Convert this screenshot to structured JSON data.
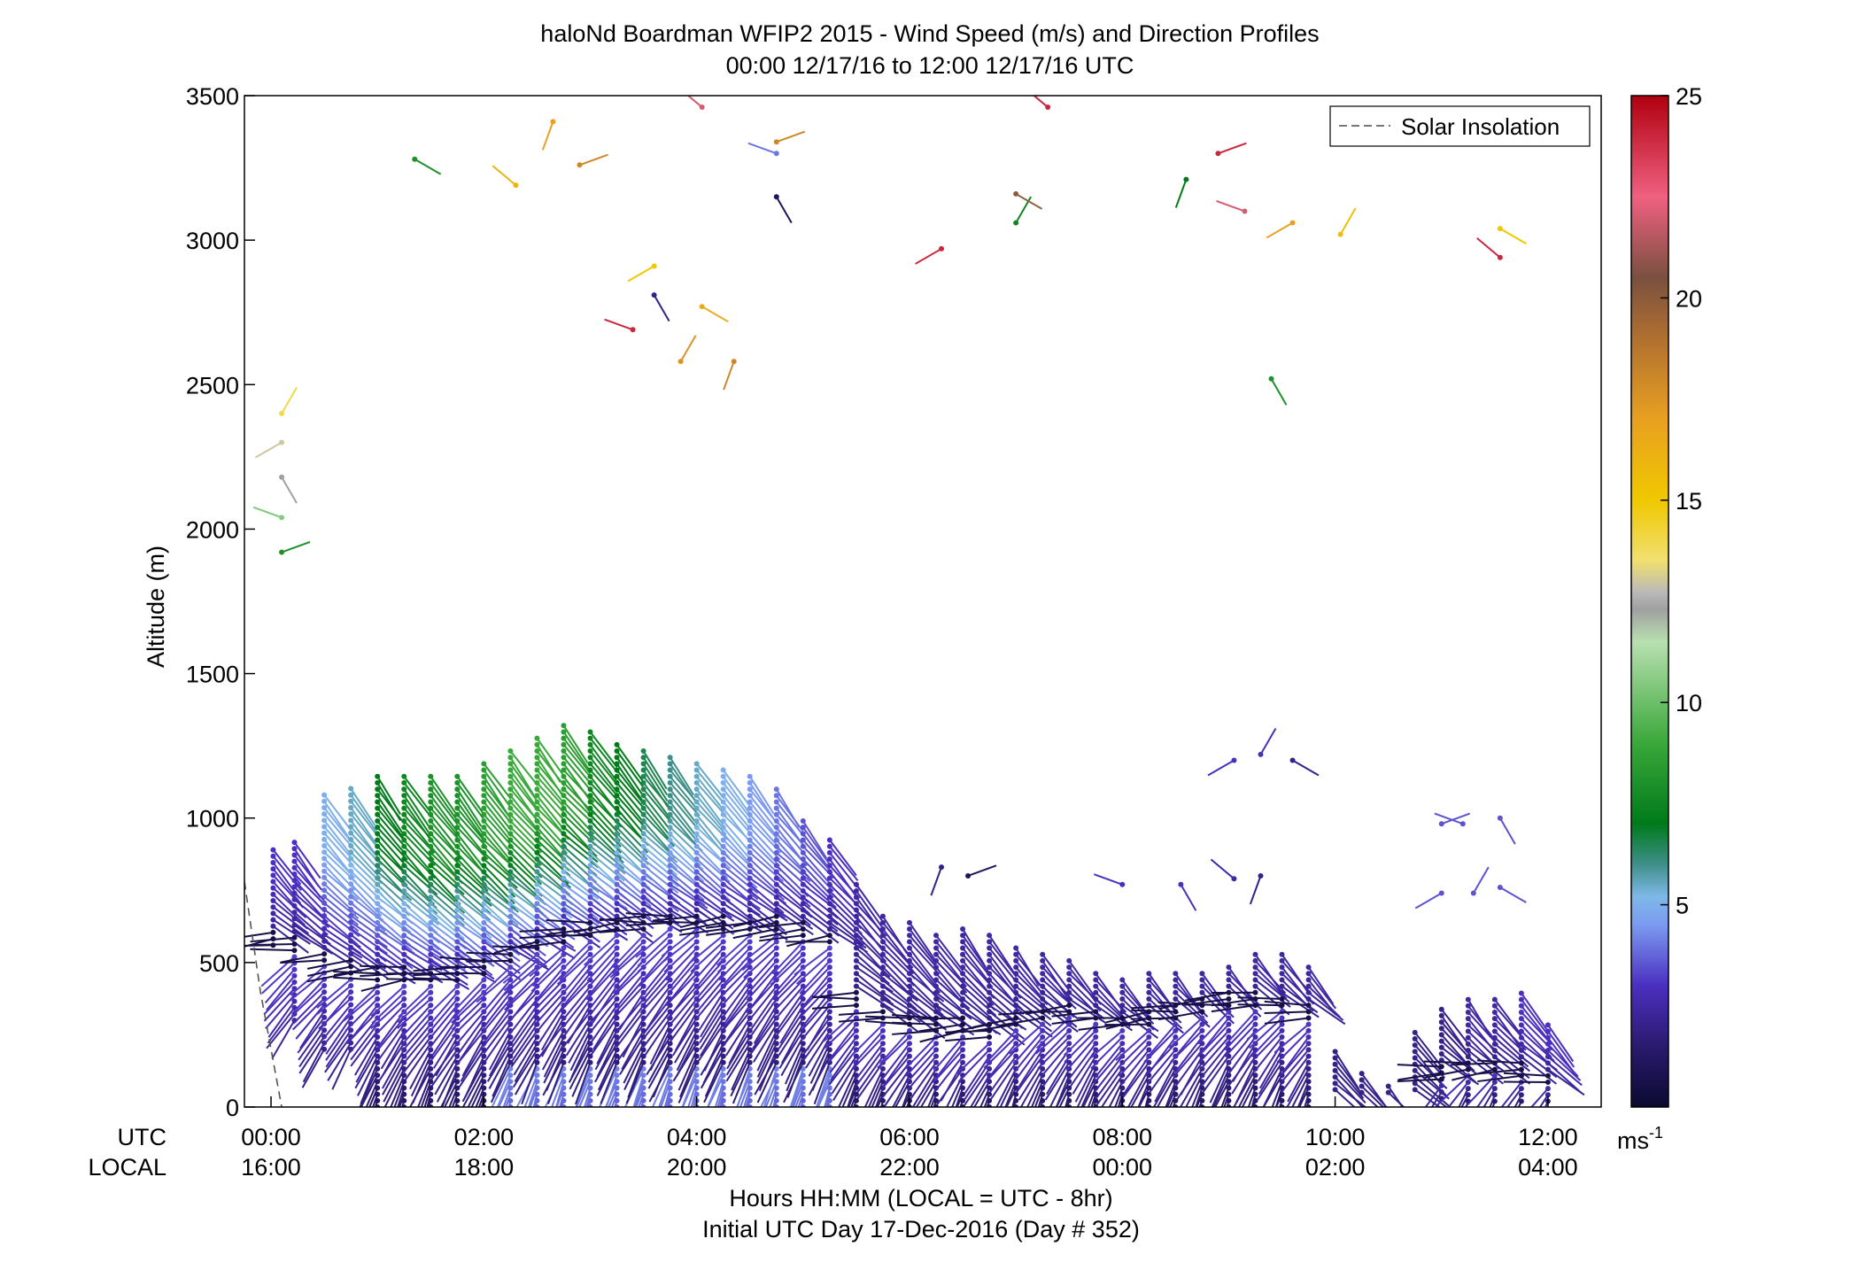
{
  "chart_data": {
    "type": "scatter",
    "title": "haloNd Boardman WFIP2 2015 - Wind Speed (m/s) and Direction Profiles",
    "subtitle": "00:00 12/17/16 to 12:00 12/17/16  UTC",
    "ylabel": "Altitude (m)",
    "xlabel": "Hours HH:MM  (LOCAL = UTC - 8hr)",
    "xlabel2": "Initial UTC Day 17-Dec-2016 (Day # 352)",
    "utc_row_label": "UTC",
    "local_row_label": "LOCAL",
    "xlim": [
      -0.25,
      12.5
    ],
    "ylim": [
      0,
      3500
    ],
    "yticks": [
      0,
      500,
      1000,
      1500,
      2000,
      2500,
      3000,
      3500
    ],
    "xticks": [
      0,
      2,
      4,
      6,
      8,
      10,
      12
    ],
    "utc_tick_labels": [
      "00:00",
      "02:00",
      "04:00",
      "06:00",
      "08:00",
      "10:00",
      "12:00"
    ],
    "local_tick_labels": [
      "16:00",
      "18:00",
      "20:00",
      "22:00",
      "00:00",
      "02:00",
      "04:00"
    ],
    "legend": {
      "label": "Solar Insolation",
      "position": "top-right"
    },
    "colorbar": {
      "label": "ms",
      "label_sup": "-1",
      "range": [
        0,
        25
      ],
      "ticks": [
        5,
        10,
        15,
        20,
        25
      ],
      "stops": [
        [
          0,
          "#0a0a30"
        ],
        [
          1.5,
          "#2a1a6e"
        ],
        [
          3,
          "#4b2fc0"
        ],
        [
          4.5,
          "#7b9af0"
        ],
        [
          5.2,
          "#7fb8e8"
        ],
        [
          6,
          "#3f8f8a"
        ],
        [
          7,
          "#007a1a"
        ],
        [
          9,
          "#3aa83a"
        ],
        [
          11.5,
          "#b8e0b0"
        ],
        [
          12.3,
          "#a0a0a0"
        ],
        [
          12.7,
          "#b8b8b8"
        ],
        [
          13.5,
          "#f0e070"
        ],
        [
          15,
          "#f0c800"
        ],
        [
          17,
          "#e8a020"
        ],
        [
          19,
          "#b07030"
        ],
        [
          20.5,
          "#7a5040"
        ],
        [
          22.5,
          "#f06080"
        ],
        [
          25,
          "#b00010"
        ]
      ]
    },
    "series": [
      {
        "x": [
          0.02,
          0.22,
          0.5,
          0.75,
          1.0,
          1.25,
          1.5,
          1.75,
          2.0,
          2.25,
          2.5,
          2.75,
          3.0,
          3.25,
          3.5,
          3.75,
          4.0,
          4.25,
          4.5,
          4.75,
          5.0,
          5.25,
          5.5,
          5.75,
          6.0,
          6.25,
          6.5,
          6.75,
          7.0,
          7.25,
          7.5,
          7.75,
          8.0,
          8.25,
          8.5,
          8.75,
          9.0,
          9.25,
          9.5,
          9.75,
          10.0,
          10.25,
          10.5,
          10.75,
          11.0,
          11.25,
          11.5,
          11.75,
          12.0
        ],
        "profile_top": [
          910,
          920,
          1100,
          1120,
          1150,
          1150,
          1150,
          1160,
          1200,
          1250,
          1280,
          1330,
          1300,
          1270,
          1250,
          1220,
          1200,
          1180,
          1150,
          1100,
          1000,
          930,
          780,
          680,
          640,
          600,
          620,
          600,
          560,
          540,
          520,
          480,
          460,
          470,
          480,
          470,
          490,
          540,
          540,
          490,
          200,
          120,
          80,
          260,
          340,
          380,
          380,
          400,
          290
        ],
        "profile_bottom": [
          560,
          300,
          200,
          200,
          0,
          0,
          0,
          0,
          0,
          0,
          0,
          0,
          0,
          0,
          0,
          0,
          0,
          0,
          0,
          0,
          0,
          0,
          0,
          0,
          0,
          0,
          0,
          0,
          0,
          0,
          0,
          0,
          0,
          0,
          0,
          0,
          0,
          0,
          0,
          0,
          60,
          50,
          50,
          60,
          30,
          20,
          20,
          20,
          20
        ],
        "low_level_jet_height": [
          580,
          560,
          520,
          480,
          460,
          460,
          450,
          460,
          480,
          520,
          560,
          590,
          610,
          630,
          640,
          650,
          650,
          640,
          630,
          640,
          620,
          580,
          380,
          320,
          300,
          290,
          280,
          270,
          300,
          320,
          340,
          320,
          300,
          310,
          330,
          350,
          380,
          380,
          360,
          330,
          0,
          0,
          0,
          0,
          120,
          140,
          140,
          130,
          100
        ],
        "upper_speed_ms": [
          3,
          3,
          5,
          5.5,
          7,
          7.5,
          8,
          8,
          8.5,
          9,
          9,
          8.5,
          7.5,
          7,
          6.5,
          6,
          5.5,
          5,
          4.5,
          4,
          3.5,
          3,
          2.5,
          2.5,
          2.5,
          2.5,
          2.5,
          2.5,
          2.5,
          2.5,
          2.5,
          2.5,
          2.5,
          2.5,
          2.5,
          2.5,
          2.5,
          2.5,
          2.5,
          2.5,
          2,
          2,
          2,
          2,
          2,
          2.5,
          2.5,
          3,
          3
        ]
      }
    ],
    "scattered_points": [
      {
        "x": 0.1,
        "y": 1920,
        "speed": 8
      },
      {
        "x": 0.1,
        "y": 2040,
        "speed": 10.5
      },
      {
        "x": 0.1,
        "y": 2180,
        "speed": 12.3
      },
      {
        "x": 0.1,
        "y": 2300,
        "speed": 13
      },
      {
        "x": 0.1,
        "y": 2400,
        "speed": 14
      },
      {
        "x": 1.35,
        "y": 3280,
        "speed": 8
      },
      {
        "x": 2.3,
        "y": 3190,
        "speed": 16
      },
      {
        "x": 2.65,
        "y": 3410,
        "speed": 17
      },
      {
        "x": 2.9,
        "y": 3260,
        "speed": 18
      },
      {
        "x": 3.4,
        "y": 2690,
        "speed": 24
      },
      {
        "x": 3.6,
        "y": 2810,
        "speed": 2
      },
      {
        "x": 3.6,
        "y": 2910,
        "speed": 15
      },
      {
        "x": 3.85,
        "y": 2580,
        "speed": 17.5
      },
      {
        "x": 4.05,
        "y": 2770,
        "speed": 16.5
      },
      {
        "x": 4.05,
        "y": 3460,
        "speed": 22
      },
      {
        "x": 4.35,
        "y": 2580,
        "speed": 18
      },
      {
        "x": 4.75,
        "y": 3340,
        "speed": 18
      },
      {
        "x": 4.75,
        "y": 3300,
        "speed": 4
      },
      {
        "x": 4.75,
        "y": 3150,
        "speed": 1
      },
      {
        "x": 6.3,
        "y": 2970,
        "speed": 24
      },
      {
        "x": 7.0,
        "y": 3060,
        "speed": 7.5
      },
      {
        "x": 7.0,
        "y": 3160,
        "speed": 20
      },
      {
        "x": 7.3,
        "y": 3460,
        "speed": 24
      },
      {
        "x": 8.6,
        "y": 3210,
        "speed": 7
      },
      {
        "x": 8.9,
        "y": 3300,
        "speed": 24
      },
      {
        "x": 9.15,
        "y": 3100,
        "speed": 22
      },
      {
        "x": 9.4,
        "y": 2520,
        "speed": 8
      },
      {
        "x": 9.6,
        "y": 3060,
        "speed": 17
      },
      {
        "x": 10.05,
        "y": 3020,
        "speed": 15.5
      },
      {
        "x": 11.55,
        "y": 3040,
        "speed": 15
      },
      {
        "x": 11.55,
        "y": 2940,
        "speed": 24
      },
      {
        "x": 6.3,
        "y": 830,
        "speed": 2
      },
      {
        "x": 6.55,
        "y": 800,
        "speed": 1
      },
      {
        "x": 8.0,
        "y": 770,
        "speed": 3
      },
      {
        "x": 8.55,
        "y": 770,
        "speed": 3
      },
      {
        "x": 9.05,
        "y": 1200,
        "speed": 3
      },
      {
        "x": 9.3,
        "y": 1220,
        "speed": 3
      },
      {
        "x": 9.6,
        "y": 1200,
        "speed": 2
      },
      {
        "x": 9.05,
        "y": 790,
        "speed": 2.5
      },
      {
        "x": 9.3,
        "y": 800,
        "speed": 2
      },
      {
        "x": 11.0,
        "y": 980,
        "speed": 3.5
      },
      {
        "x": 11.2,
        "y": 980,
        "speed": 3.5
      },
      {
        "x": 11.55,
        "y": 1000,
        "speed": 3.5
      },
      {
        "x": 11.0,
        "y": 740,
        "speed": 3.5
      },
      {
        "x": 11.3,
        "y": 740,
        "speed": 3.5
      },
      {
        "x": 11.55,
        "y": 760,
        "speed": 3.5
      }
    ],
    "solar_insolation": {
      "x": [
        -0.25,
        -0.1,
        0.1
      ],
      "y": [
        780,
        400,
        0
      ]
    }
  }
}
